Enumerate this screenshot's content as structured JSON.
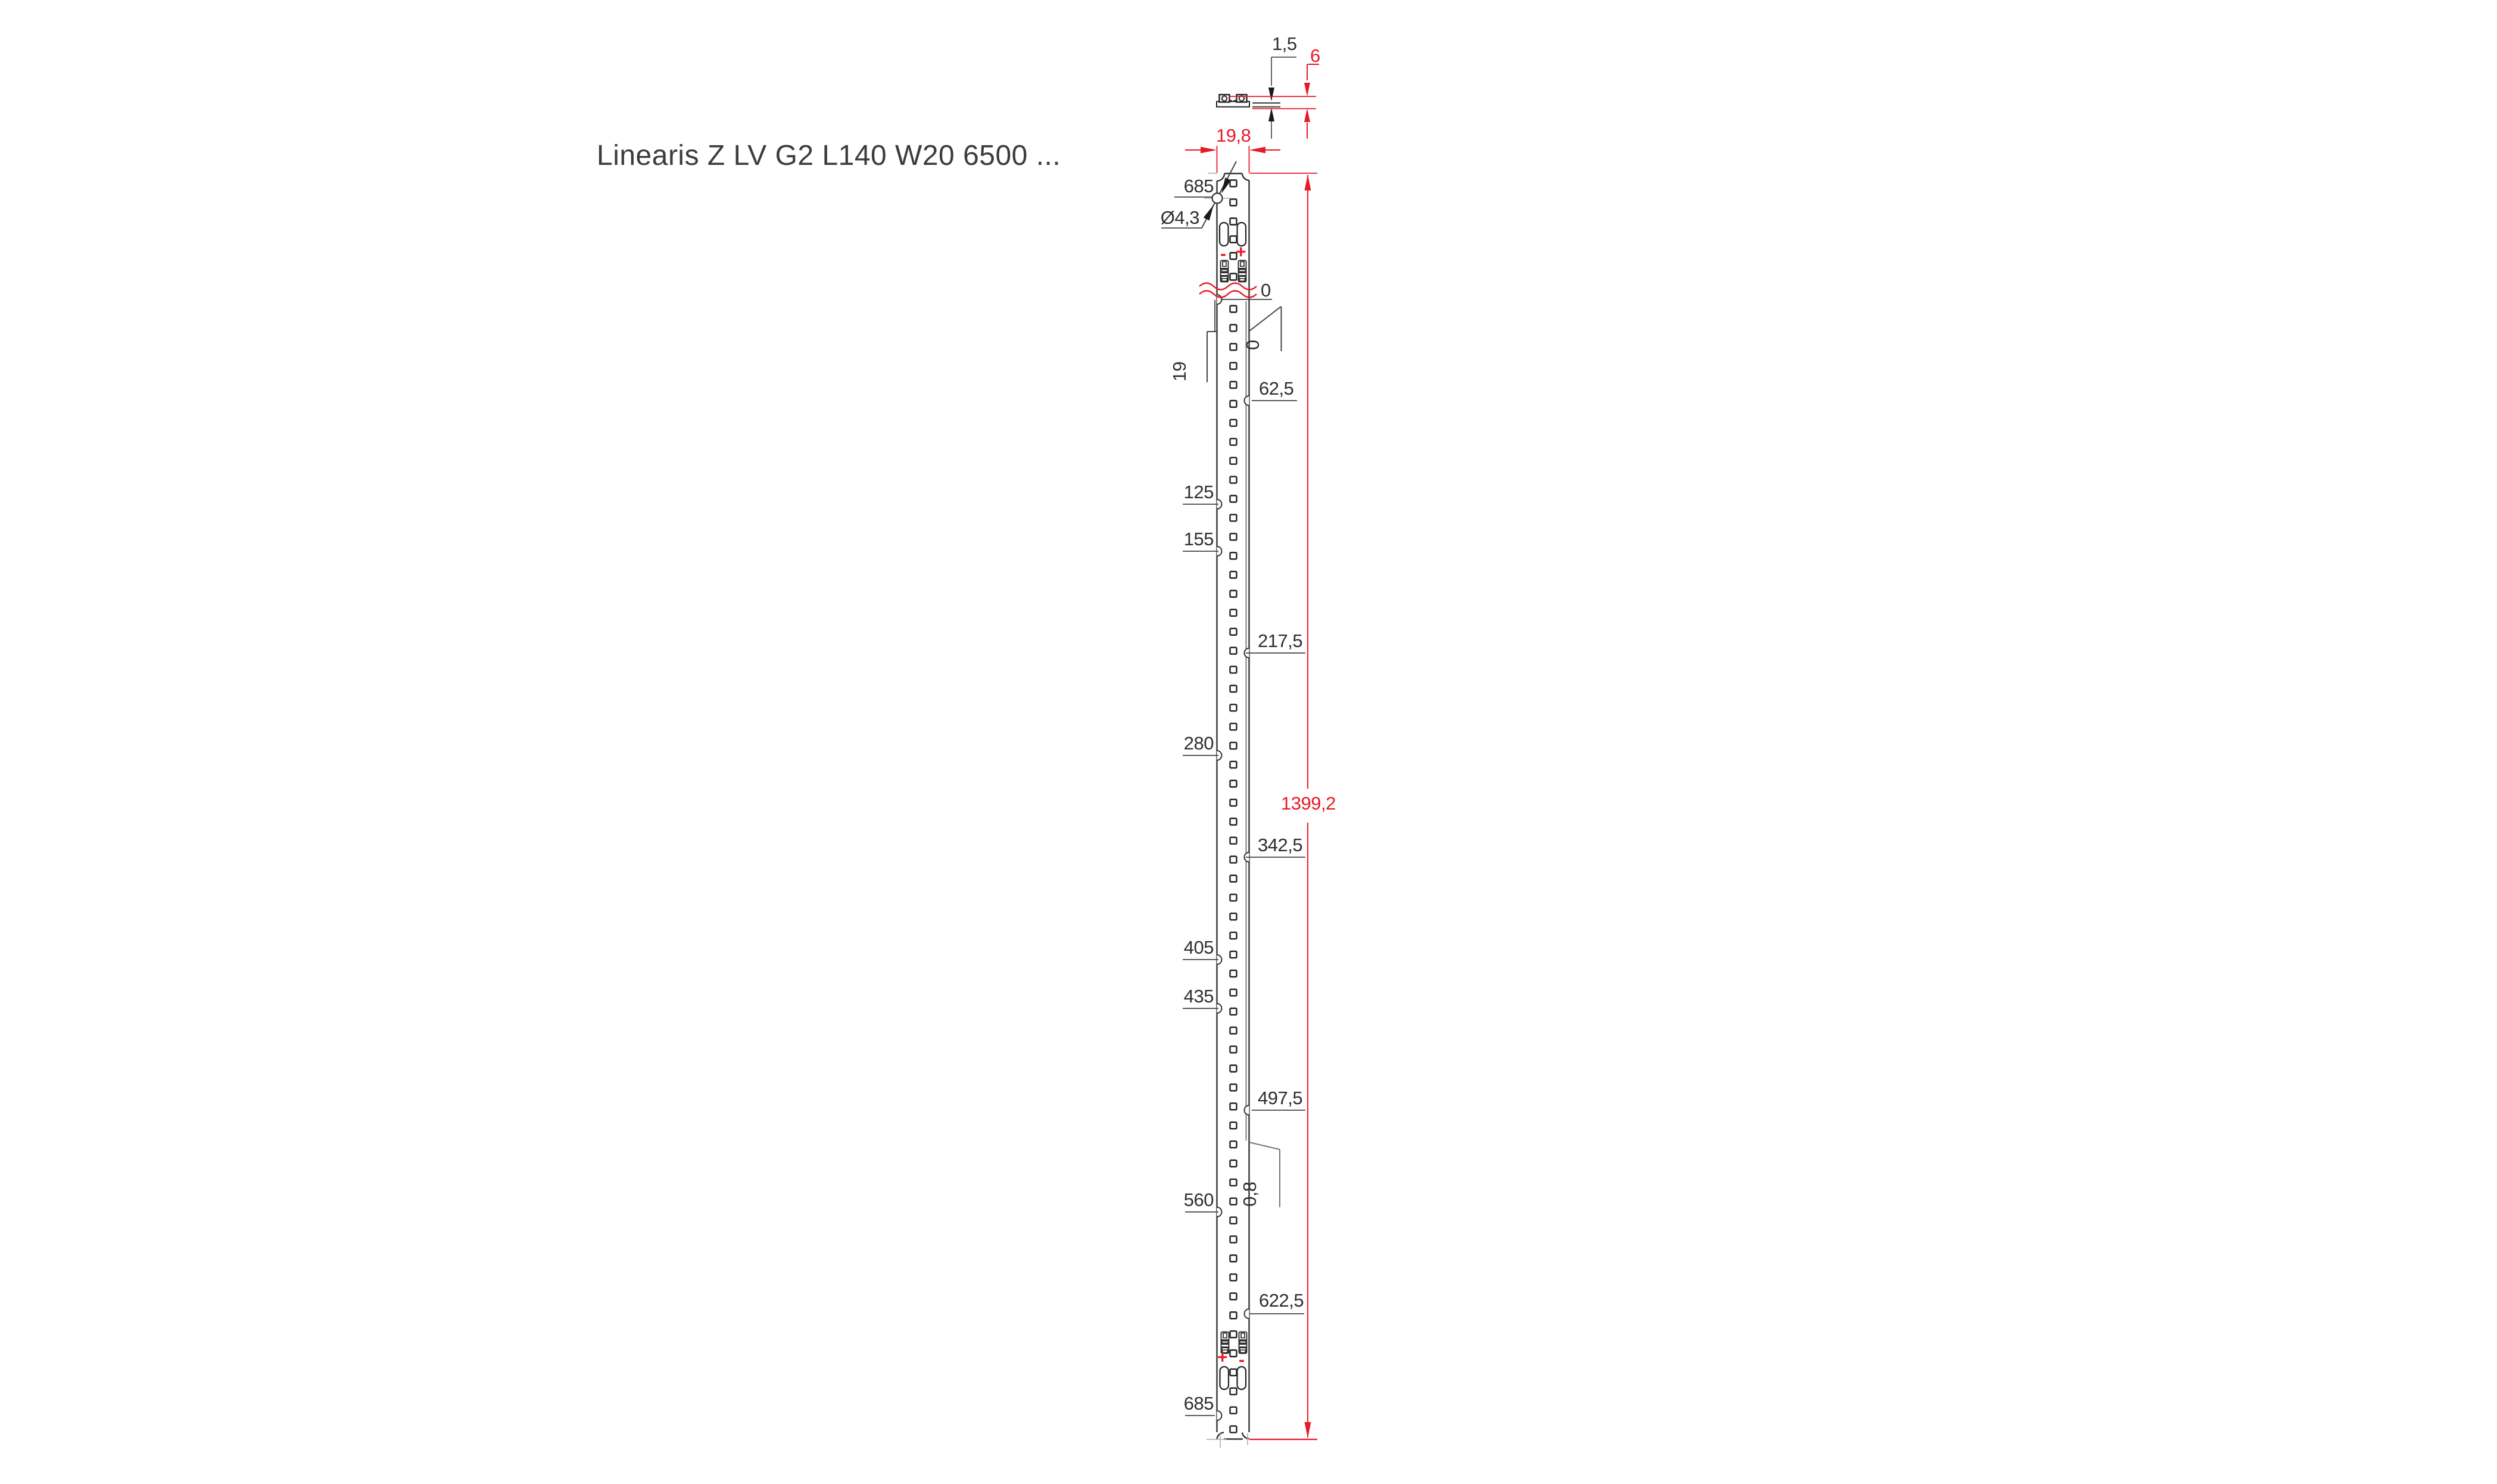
{
  "title": "Linearis Z LV G2 L140 W20 6500 ...",
  "colors": {
    "accent_red": "#e81a27",
    "line_dark": "#2e2e2e",
    "line_gray": "#8a8a8a"
  },
  "top_view": {
    "thickness": "1,5",
    "height": "6",
    "width": "19,8"
  },
  "profile_view": {
    "total_length": "1399,2",
    "hole_label": "685",
    "hole_diameter": "Ø4,3",
    "overlap": "19",
    "datum_top": "0",
    "datum_flag": "0",
    "edge_step": "0,8",
    "left_marks": [
      "125",
      "155",
      "280",
      "405",
      "435",
      "560",
      "685"
    ],
    "right_marks": [
      "62,5",
      "217,5",
      "342,5",
      "497,5",
      "622,5"
    ],
    "polarity": {
      "top_left": "-",
      "top_right": "+",
      "bottom_left": "+",
      "bottom_right": "-"
    }
  }
}
